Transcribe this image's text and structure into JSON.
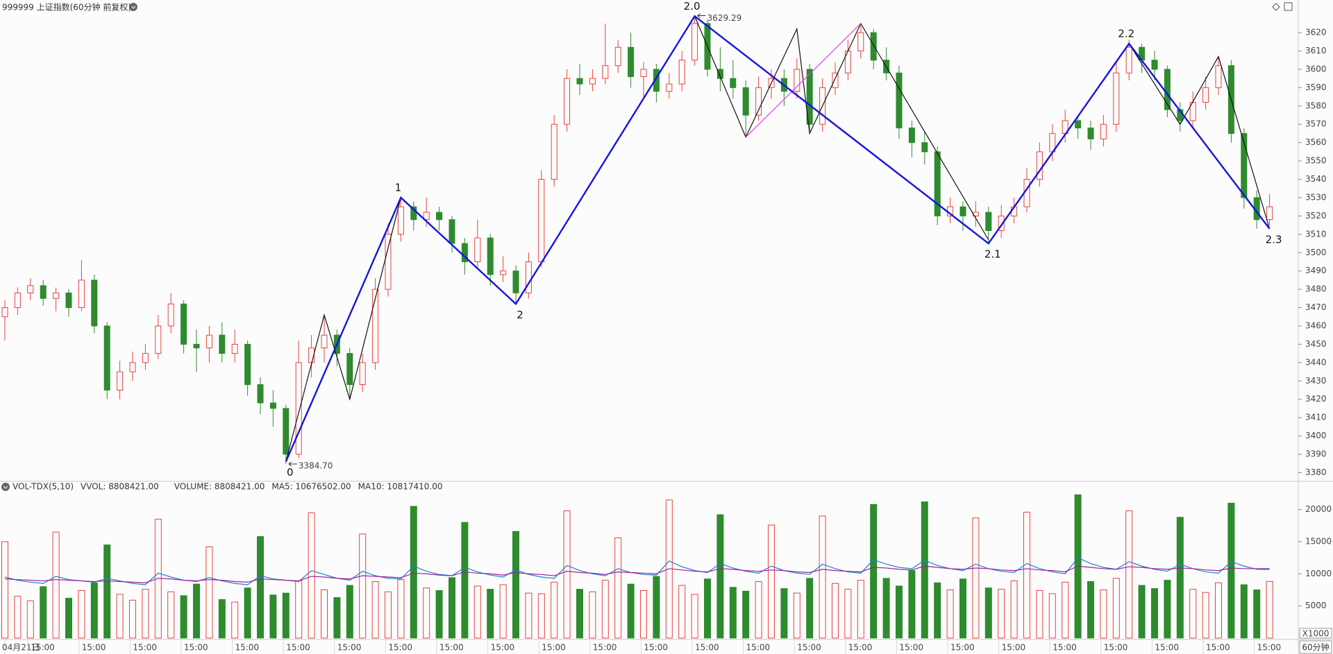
{
  "chart_data": [
    {
      "type": "candlestick",
      "title": "999999 上证指数(60分钟 前复权)",
      "up_color": "#e8413c",
      "down_color": "#2e8b2e",
      "ylim": [
        3376,
        3631
      ],
      "yticks": [
        3380,
        3390,
        3400,
        3410,
        3420,
        3430,
        3440,
        3450,
        3460,
        3470,
        3480,
        3490,
        3500,
        3510,
        3520,
        3530,
        3540,
        3550,
        3560,
        3570,
        3580,
        3590,
        3600,
        3610,
        3620
      ],
      "categories": [
        "04月21日",
        null,
        null,
        "15:00",
        null,
        null,
        null,
        "15:00",
        null,
        null,
        null,
        "15:00",
        null,
        null,
        null,
        "15:00",
        null,
        null,
        null,
        "15:00",
        null,
        null,
        null,
        "15:00",
        null,
        null,
        null,
        "15:00",
        null,
        null,
        null,
        "15:00",
        null,
        null,
        null,
        "15:00",
        null,
        null,
        null,
        "15:00",
        null,
        null,
        null,
        "15:00",
        null,
        null,
        null,
        "15:00",
        null,
        null,
        null,
        "15:00",
        null,
        null,
        null,
        "15:00",
        null,
        null,
        null,
        "15:00",
        null,
        null,
        null,
        "15:00",
        null,
        null,
        null,
        "15:00",
        null,
        null,
        null,
        "15:00",
        null,
        null,
        null,
        "15:00",
        null,
        null,
        null,
        "15:00",
        null,
        null,
        null,
        "15:00",
        null,
        null,
        null,
        "15:00",
        null,
        null,
        null,
        "15:00",
        null,
        null,
        null,
        "15:00",
        null,
        null,
        null,
        "15:00"
      ],
      "candles": [
        [
          3465,
          3474,
          3452,
          3470
        ],
        [
          3470,
          3481,
          3466,
          3478
        ],
        [
          3478,
          3486,
          3474,
          3482
        ],
        [
          3482,
          3485,
          3471,
          3475
        ],
        [
          3475,
          3481,
          3468,
          3478
        ],
        [
          3478,
          3480,
          3465,
          3470
        ],
        [
          3470,
          3496,
          3468,
          3485
        ],
        [
          3485,
          3488,
          3456,
          3460
        ],
        [
          3460,
          3462,
          3420,
          3425
        ],
        [
          3425,
          3441,
          3420,
          3435
        ],
        [
          3435,
          3446,
          3430,
          3440
        ],
        [
          3440,
          3450,
          3436,
          3445
        ],
        [
          3445,
          3466,
          3442,
          3460
        ],
        [
          3460,
          3478,
          3456,
          3472
        ],
        [
          3472,
          3474,
          3445,
          3450
        ],
        [
          3450,
          3458,
          3435,
          3448
        ],
        [
          3448,
          3460,
          3440,
          3455
        ],
        [
          3455,
          3462,
          3440,
          3445
        ],
        [
          3445,
          3458,
          3440,
          3450
        ],
        [
          3450,
          3452,
          3422,
          3428
        ],
        [
          3428,
          3432,
          3412,
          3418
        ],
        [
          3418,
          3425,
          3405,
          3415
        ],
        [
          3415,
          3417,
          3384.7,
          3390
        ],
        [
          3390,
          3452,
          3388,
          3440
        ],
        [
          3440,
          3455,
          3432,
          3448
        ],
        [
          3448,
          3466,
          3440,
          3455
        ],
        [
          3455,
          3458,
          3438,
          3445
        ],
        [
          3445,
          3448,
          3420,
          3428
        ],
        [
          3428,
          3445,
          3424,
          3440
        ],
        [
          3440,
          3486,
          3436,
          3480
        ],
        [
          3480,
          3516,
          3476,
          3510
        ],
        [
          3510,
          3530,
          3506,
          3525
        ],
        [
          3525,
          3528,
          3512,
          3518
        ],
        [
          3518,
          3530,
          3514,
          3522
        ],
        [
          3522,
          3525,
          3512,
          3518
        ],
        [
          3518,
          3520,
          3500,
          3505
        ],
        [
          3505,
          3508,
          3488,
          3495
        ],
        [
          3495,
          3518,
          3492,
          3508
        ],
        [
          3508,
          3510,
          3482,
          3488
        ],
        [
          3488,
          3498,
          3484,
          3490
        ],
        [
          3490,
          3493,
          3472,
          3478
        ],
        [
          3478,
          3500,
          3475,
          3495
        ],
        [
          3495,
          3545,
          3492,
          3540
        ],
        [
          3540,
          3575,
          3536,
          3570
        ],
        [
          3570,
          3600,
          3566,
          3595
        ],
        [
          3595,
          3603,
          3586,
          3592
        ],
        [
          3592,
          3600,
          3588,
          3595
        ],
        [
          3595,
          3625,
          3592,
          3602
        ],
        [
          3602,
          3616,
          3598,
          3612
        ],
        [
          3612,
          3620,
          3590,
          3596
        ],
        [
          3596,
          3604,
          3584,
          3600
        ],
        [
          3600,
          3603,
          3582,
          3588
        ],
        [
          3588,
          3598,
          3584,
          3592
        ],
        [
          3592,
          3610,
          3588,
          3605
        ],
        [
          3605,
          3629.29,
          3602,
          3625
        ],
        [
          3625,
          3627,
          3596,
          3600
        ],
        [
          3600,
          3612,
          3588,
          3595
        ],
        [
          3595,
          3605,
          3584,
          3590
        ],
        [
          3590,
          3594,
          3563,
          3575
        ],
        [
          3575,
          3596,
          3572,
          3590
        ],
        [
          3590,
          3600,
          3584,
          3595
        ],
        [
          3595,
          3600,
          3580,
          3588
        ],
        [
          3588,
          3606,
          3584,
          3600
        ],
        [
          3600,
          3603,
          3565,
          3570
        ],
        [
          3570,
          3595,
          3566,
          3590
        ],
        [
          3590,
          3604,
          3586,
          3598
        ],
        [
          3598,
          3616,
          3594,
          3610
        ],
        [
          3610,
          3624,
          3606,
          3620
        ],
        [
          3620,
          3622,
          3600,
          3605
        ],
        [
          3605,
          3612,
          3594,
          3598
        ],
        [
          3598,
          3602,
          3562,
          3568
        ],
        [
          3568,
          3572,
          3552,
          3560
        ],
        [
          3560,
          3566,
          3548,
          3555
        ],
        [
          3555,
          3558,
          3515,
          3520
        ],
        [
          3520,
          3530,
          3516,
          3525
        ],
        [
          3525,
          3528,
          3512,
          3520
        ],
        [
          3520,
          3528,
          3514,
          3522
        ],
        [
          3522,
          3525,
          3505,
          3512
        ],
        [
          3512,
          3526,
          3508,
          3520
        ],
        [
          3520,
          3530,
          3516,
          3525
        ],
        [
          3525,
          3546,
          3522,
          3540
        ],
        [
          3540,
          3560,
          3536,
          3555
        ],
        [
          3555,
          3570,
          3550,
          3565
        ],
        [
          3565,
          3578,
          3560,
          3572
        ],
        [
          3572,
          3575,
          3562,
          3568
        ],
        [
          3568,
          3572,
          3556,
          3562
        ],
        [
          3562,
          3575,
          3558,
          3570
        ],
        [
          3570,
          3604,
          3566,
          3598
        ],
        [
          3598,
          3616,
          3594,
          3612
        ],
        [
          3612,
          3614,
          3598,
          3605
        ],
        [
          3605,
          3610,
          3594,
          3600
        ],
        [
          3600,
          3602,
          3574,
          3578
        ],
        [
          3578,
          3582,
          3566,
          3572
        ],
        [
          3572,
          3588,
          3568,
          3582
        ],
        [
          3582,
          3596,
          3578,
          3590
        ],
        [
          3590,
          3607,
          3586,
          3602
        ],
        [
          3602,
          3605,
          3560,
          3565
        ],
        [
          3565,
          3568,
          3524,
          3530
        ],
        [
          3530,
          3534,
          3513,
          3518
        ],
        [
          3518,
          3532,
          3515,
          3525
        ]
      ],
      "extremes": [
        {
          "x": 54,
          "value": 3629.29,
          "label": "3629.29"
        },
        {
          "x": 22,
          "value": 3384.7,
          "label": "3384.70"
        }
      ],
      "waves": {
        "color": "#1414e0",
        "points": [
          {
            "x": 22,
            "y": 3386,
            "label": "0"
          },
          {
            "x": 31,
            "y": 3530,
            "label": "1"
          },
          {
            "x": 40,
            "y": 3472,
            "label": "2"
          },
          {
            "x": 54,
            "y": 3629,
            "label": "2.0"
          },
          {
            "x": 77,
            "y": 3505,
            "label": "2.1"
          },
          {
            "x": 88,
            "y": 3614,
            "label": "2.2"
          },
          {
            "x": 99,
            "y": 3513,
            "label": "2.3"
          }
        ]
      },
      "zigzags": [
        {
          "color": "#111111",
          "x": [
            22,
            25,
            27,
            31
          ],
          "y": [
            3386,
            3466,
            3420,
            3530
          ]
        },
        {
          "color": "#111111",
          "x": [
            54,
            58,
            62,
            63,
            67,
            77
          ],
          "y": [
            3629,
            3563,
            3622,
            3565,
            3625,
            3507
          ]
        },
        {
          "color": "#111111",
          "x": [
            88,
            92,
            95,
            99
          ],
          "y": [
            3614,
            3570,
            3607,
            3513
          ]
        },
        {
          "color": "#e040e0",
          "x": [
            58,
            67
          ],
          "y": [
            3563,
            3625
          ]
        }
      ]
    },
    {
      "type": "bar",
      "legend": [
        "VOL-TDX(5,10)",
        "VVOL: 8808421.00",
        "VOLUME: 8808421.00",
        "MA5: 10676502.00",
        "MA10: 10817410.00"
      ],
      "legend_colors": [
        "#222222",
        "#222222",
        "#1e7fd0",
        "#1e7fd0",
        "#a0209a"
      ],
      "unit_label": "X1000",
      "period_label": "60分钟",
      "ylim": [
        0,
        23750
      ],
      "yticks": [
        5000,
        10000,
        15000,
        20000
      ],
      "values": [
        15000,
        6500,
        5800,
        8000,
        16500,
        6200,
        7400,
        8600,
        14500,
        6800,
        5900,
        7600,
        18500,
        7200,
        6600,
        8400,
        14200,
        6000,
        5600,
        7800,
        15800,
        6700,
        7000,
        8900,
        19500,
        7500,
        6300,
        8200,
        16200,
        8800,
        7200,
        9100,
        20500,
        7800,
        7400,
        9400,
        18000,
        8100,
        7600,
        8300,
        16600,
        7000,
        6900,
        8700,
        19800,
        7600,
        7200,
        9000,
        15600,
        8400,
        7400,
        9600,
        21500,
        8200,
        6800,
        9200,
        19200,
        7900,
        7300,
        8800,
        17600,
        7700,
        7000,
        9300,
        19000,
        8500,
        7600,
        9000,
        20800,
        9300,
        8100,
        10500,
        21200,
        8600,
        7500,
        9200,
        18700,
        7800,
        7600,
        8900,
        19600,
        7400,
        6900,
        8700,
        22300,
        8800,
        7500,
        9300,
        19800,
        8200,
        7700,
        9000,
        18800,
        7600,
        7100,
        8600,
        21000,
        8300,
        7500,
        8808.421
      ],
      "lines": [
        {
          "color": "#1e7fd0",
          "values": [
            9500,
            9000,
            8700,
            8500,
            9600,
            9100,
            8900,
            8700,
            9300,
            8900,
            8500,
            8300,
            10100,
            9500,
            9000,
            8800,
            9400,
            8900,
            8500,
            8300,
            9700,
            9200,
            9000,
            8800,
            10500,
            9900,
            9300,
            9000,
            10400,
            9700,
            9300,
            9200,
            11200,
            10400,
            9900,
            9700,
            11000,
            10300,
            9800,
            9500,
            10600,
            9900,
            9500,
            9300,
            11300,
            10500,
            10000,
            9700,
            10800,
            10200,
            9900,
            9800,
            12000,
            11100,
            10500,
            10200,
            11600,
            10900,
            10400,
            10100,
            11200,
            10500,
            10100,
            9900,
            11500,
            10800,
            10300,
            10100,
            12200,
            11500,
            11000,
            10800,
            12100,
            11300,
            10800,
            10500,
            11500,
            10800,
            10400,
            10200,
            11600,
            10800,
            10300,
            10000,
            12500,
            11600,
            11000,
            10700,
            11900,
            11200,
            10700,
            10400,
            11500,
            10800,
            10300,
            10100,
            11900,
            11200,
            10700,
            10676.502
          ]
        },
        {
          "color": "#a0209a",
          "values": [
            9200,
            9100,
            9000,
            8900,
            9100,
            9000,
            8900,
            8800,
            8900,
            8800,
            8700,
            8600,
            9300,
            9200,
            9000,
            8900,
            9100,
            9000,
            8800,
            8700,
            9200,
            9100,
            9000,
            8900,
            9600,
            9500,
            9300,
            9200,
            9700,
            9600,
            9500,
            9400,
            10100,
            10000,
            9800,
            9700,
            10300,
            10100,
            10000,
            9800,
            10200,
            10000,
            9900,
            9700,
            10400,
            10200,
            10100,
            9900,
            10300,
            10200,
            10100,
            10000,
            10800,
            10600,
            10400,
            10300,
            10800,
            10700,
            10500,
            10400,
            10600,
            10500,
            10300,
            10200,
            10700,
            10500,
            10400,
            10300,
            11000,
            10900,
            10700,
            10600,
            11200,
            11000,
            10800,
            10700,
            10900,
            10800,
            10600,
            10500,
            10800,
            10600,
            10500,
            10300,
            11200,
            11000,
            10800,
            10700,
            11100,
            11000,
            10800,
            10700,
            10900,
            10800,
            10600,
            10500,
            10900,
            10800,
            10800,
            10817.41
          ]
        }
      ]
    }
  ]
}
